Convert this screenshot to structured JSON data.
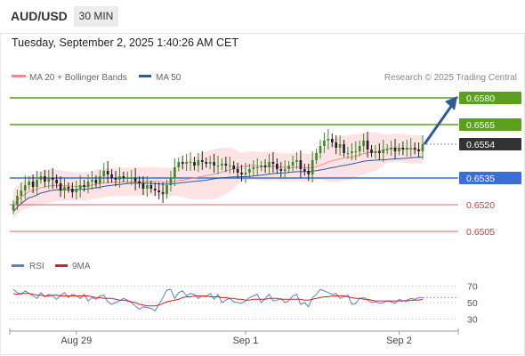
{
  "header": {
    "symbol": "AUD/USD",
    "timeframe": "30 MIN",
    "timestamp": "Tuesday, September 2, 2025 1:40:26 AM CET"
  },
  "legend": {
    "ma20_label": "MA 20 + Bollinger Bands",
    "ma20_color": "#f08a8a",
    "ma50_label": "MA 50",
    "ma50_color": "#2e5a9c",
    "credit": "Research © 2025 Trading Central"
  },
  "colors": {
    "resistance": "#5aa01e",
    "pivot": "#3b6fd6",
    "support": "#e26060",
    "current": "#333333",
    "arrow": "#2e5a9c",
    "candle_up": "#3a8a2a",
    "candle_down": "#222222",
    "band_fill": "#fde3e3",
    "rsi": "#5a7fd6",
    "rsi_ma": "#cc2222"
  },
  "chart_data": [
    {
      "type": "candlestick",
      "title": "AUD/USD 30 MIN",
      "y_range": [
        0.6497,
        0.6585
      ],
      "x_ticks": [
        {
          "label": "Aug 29",
          "bar": 16
        },
        {
          "label": "Sep 1",
          "bar": 59
        },
        {
          "label": "Sep 2",
          "bar": 98
        }
      ],
      "levels": [
        {
          "label": "0.6580",
          "value": 0.658,
          "kind": "resistance"
        },
        {
          "label": "0.6565",
          "value": 0.6565,
          "kind": "resistance"
        },
        {
          "label": "0.6554",
          "value": 0.6554,
          "kind": "current"
        },
        {
          "label": "0.6535",
          "value": 0.6535,
          "kind": "pivot"
        },
        {
          "label": "0.6520",
          "value": 0.652,
          "kind": "support"
        },
        {
          "label": "0.6505",
          "value": 0.6505,
          "kind": "support"
        }
      ],
      "series": [
        {
          "name": "MA 20 + Bollinger Bands",
          "kind": "ma20"
        },
        {
          "name": "MA 50",
          "kind": "ma50"
        }
      ],
      "close": [
        0.652,
        0.6525,
        0.6528,
        0.6531,
        0.6533,
        0.653,
        0.6534,
        0.6536,
        0.6533,
        0.6535,
        0.6534,
        0.6532,
        0.6528,
        0.653,
        0.6529,
        0.6527,
        0.6529,
        0.6531,
        0.653,
        0.6533,
        0.6534,
        0.6532,
        0.6536,
        0.6539,
        0.6537,
        0.6535,
        0.6534,
        0.6536,
        0.6535,
        0.6535,
        0.6535,
        0.6533,
        0.6532,
        0.6529,
        0.6531,
        0.6529,
        0.6528,
        0.6527,
        0.6526,
        0.6531,
        0.6535,
        0.6541,
        0.6544,
        0.6543,
        0.6544,
        0.6544,
        0.6542,
        0.6545,
        0.6544,
        0.6543,
        0.6544,
        0.6542,
        0.6542,
        0.6543,
        0.6542,
        0.6542,
        0.654,
        0.6538,
        0.6537,
        0.6538,
        0.654,
        0.6541,
        0.6541,
        0.6542,
        0.6541,
        0.6544,
        0.6543,
        0.654,
        0.6539,
        0.654,
        0.6542,
        0.6544,
        0.6545,
        0.654,
        0.6539,
        0.6537,
        0.6545,
        0.6549,
        0.6553,
        0.6556,
        0.6557,
        0.6555,
        0.6552,
        0.6554,
        0.6549,
        0.6549,
        0.655,
        0.655,
        0.6553,
        0.6556,
        0.6551,
        0.6549,
        0.655,
        0.6549,
        0.6551,
        0.6551,
        0.6552,
        0.655,
        0.6552,
        0.6551,
        0.6552,
        0.6552,
        0.6551,
        0.655,
        0.6554
      ]
    },
    {
      "type": "line",
      "title": "RSI",
      "y_range": [
        20,
        80
      ],
      "y_ticks": [
        70,
        50,
        30
      ],
      "series": [
        {
          "name": "RSI"
        },
        {
          "name": "9MA"
        }
      ],
      "rsi": [
        66,
        62,
        60,
        64,
        61,
        58,
        55,
        62,
        57,
        60,
        58,
        54,
        59,
        62,
        56,
        60,
        58,
        55,
        60,
        52,
        56,
        54,
        58,
        59,
        51,
        48,
        50,
        52,
        55,
        53,
        50,
        46,
        42,
        45,
        44,
        43,
        40,
        48,
        56,
        65,
        66,
        55,
        62,
        64,
        58,
        61,
        60,
        55,
        58,
        57,
        61,
        54,
        60,
        50,
        53,
        55,
        51,
        50,
        49,
        52,
        56,
        58,
        60,
        50,
        55,
        60,
        52,
        53,
        55,
        50,
        52,
        58,
        60,
        48,
        50,
        45,
        56,
        60,
        66,
        64,
        62,
        60,
        61,
        55,
        57,
        59,
        48,
        49,
        55,
        56,
        53,
        50,
        51,
        49,
        50,
        52,
        51,
        49,
        54,
        52,
        53,
        55,
        54,
        56,
        56
      ],
      "rsi_ma": [
        61,
        60,
        61,
        61,
        61,
        60,
        59,
        59,
        58,
        58,
        59,
        59,
        58,
        58,
        58,
        58,
        58,
        58,
        58,
        58,
        57,
        56,
        56,
        55,
        55,
        55,
        54,
        53,
        53,
        52,
        51,
        50,
        48,
        47,
        46,
        46,
        46,
        47,
        49,
        51,
        52,
        53,
        54,
        56,
        57,
        57,
        58,
        58,
        58,
        58,
        57,
        57,
        57,
        56,
        56,
        55,
        55,
        54,
        54,
        53,
        53,
        54,
        54,
        54,
        54,
        55,
        55,
        55,
        54,
        54,
        54,
        54,
        54,
        54,
        53,
        53,
        54,
        55,
        56,
        57,
        57,
        58,
        58,
        58,
        58,
        57,
        56,
        55,
        55,
        54,
        54,
        53,
        52,
        52,
        52,
        52,
        52,
        52,
        52,
        52,
        52,
        53,
        53,
        53,
        54
      ]
    }
  ]
}
